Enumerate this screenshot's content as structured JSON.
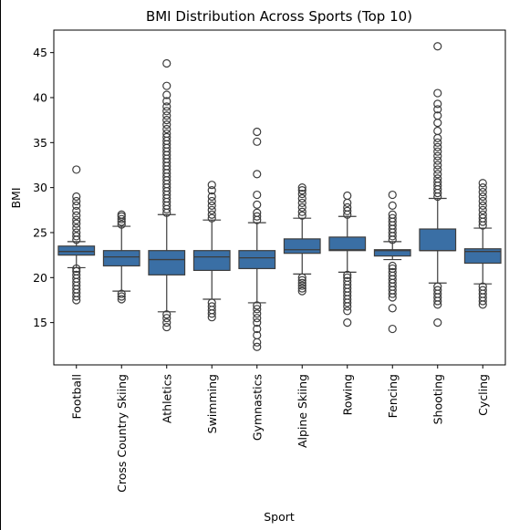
{
  "chart_data": {
    "type": "box",
    "title": "BMI Distribution Across Sports (Top 10)",
    "xlabel": "Sport",
    "ylabel": "BMI",
    "ylim": [
      10.3,
      47.5
    ],
    "yticks": [
      15,
      20,
      25,
      30,
      35,
      40,
      45
    ],
    "grid": false,
    "box_color": "#3a6fa5",
    "line_color": "#3d3d3d",
    "categories": [
      "Football",
      "Cross Country Skiing",
      "Athletics",
      "Swimming",
      "Gymnastics",
      "Alpine Skiing",
      "Rowing",
      "Fencing",
      "Shooting",
      "Cycling"
    ],
    "boxes": [
      {
        "sport": "Football",
        "whislo": 21.1,
        "q1": 22.5,
        "med": 22.9,
        "q3": 23.5,
        "whishi": 24.0,
        "fliers": [
          17.5,
          17.9,
          18.3,
          18.7,
          19.1,
          19.5,
          19.9,
          20.3,
          20.7,
          21.0,
          24.2,
          24.6,
          25.0,
          25.5,
          26.0,
          26.4,
          26.9,
          27.4,
          28.0,
          28.5,
          29.0,
          32.0
        ]
      },
      {
        "sport": "Cross Country Skiing",
        "whislo": 18.5,
        "q1": 21.3,
        "med": 22.3,
        "q3": 23.0,
        "whishi": 25.7,
        "fliers": [
          17.6,
          17.9,
          18.2,
          25.9,
          26.2,
          26.5,
          26.8,
          27.0
        ]
      },
      {
        "sport": "Athletics",
        "whislo": 16.2,
        "q1": 20.3,
        "med": 22.0,
        "q3": 23.0,
        "whishi": 27.0,
        "fliers": [
          14.5,
          15.0,
          15.5,
          15.9,
          27.2,
          27.6,
          28.0,
          28.4,
          28.8,
          29.2,
          29.6,
          30.0,
          30.4,
          30.8,
          31.2,
          31.6,
          32.0,
          32.4,
          32.8,
          33.2,
          33.6,
          34.0,
          34.4,
          34.8,
          35.2,
          35.6,
          36.0,
          36.5,
          37.0,
          37.5,
          38.0,
          38.5,
          39.0,
          39.6,
          40.3,
          41.3,
          43.8
        ]
      },
      {
        "sport": "Swimming",
        "whislo": 17.6,
        "q1": 20.8,
        "med": 22.3,
        "q3": 23.0,
        "whishi": 26.4,
        "fliers": [
          15.6,
          16.0,
          16.4,
          16.8,
          17.2,
          26.6,
          27.0,
          27.5,
          28.0,
          28.5,
          29.0,
          29.7,
          30.3
        ]
      },
      {
        "sport": "Gymnastics",
        "whislo": 17.2,
        "q1": 21.0,
        "med": 22.2,
        "q3": 23.0,
        "whishi": 26.1,
        "fliers": [
          12.3,
          12.8,
          13.6,
          14.3,
          15.0,
          15.5,
          16.0,
          16.5,
          16.9,
          26.4,
          26.8,
          27.2,
          28.1,
          29.2,
          31.5,
          35.1,
          36.2
        ]
      },
      {
        "sport": "Alpine Skiing",
        "whislo": 20.4,
        "q1": 22.7,
        "med": 23.1,
        "q3": 24.3,
        "whishi": 26.6,
        "fliers": [
          18.5,
          18.8,
          19.1,
          19.4,
          19.7,
          20.0,
          26.9,
          27.3,
          27.8,
          28.3,
          28.8,
          29.3,
          29.7,
          30.0
        ]
      },
      {
        "sport": "Rowing",
        "whislo": 20.6,
        "q1": 23.0,
        "med": 23.1,
        "q3": 24.5,
        "whishi": 26.8,
        "fliers": [
          15.0,
          16.3,
          16.8,
          17.2,
          17.6,
          18.0,
          18.4,
          18.8,
          19.2,
          19.6,
          20.0,
          20.3,
          27.0,
          27.4,
          27.8,
          28.3,
          29.1
        ]
      },
      {
        "sport": "Fencing",
        "whislo": 22.0,
        "q1": 22.4,
        "med": 23.0,
        "q3": 23.1,
        "whishi": 24.0,
        "fliers": [
          14.3,
          16.6,
          17.8,
          18.2,
          18.6,
          19.0,
          19.4,
          19.8,
          20.2,
          20.6,
          21.0,
          21.3,
          24.2,
          24.6,
          25.0,
          25.4,
          25.8,
          26.2,
          26.6,
          27.0,
          28.0,
          29.2
        ]
      },
      {
        "sport": "Shooting",
        "whislo": 19.4,
        "q1": 23.0,
        "med": 23.0,
        "q3": 25.4,
        "whishi": 28.8,
        "fliers": [
          15.0,
          17.0,
          17.4,
          17.8,
          18.2,
          18.6,
          19.0,
          29.0,
          29.4,
          29.8,
          30.2,
          30.6,
          31.0,
          31.5,
          32.0,
          32.5,
          33.0,
          33.5,
          34.0,
          34.5,
          35.0,
          35.5,
          36.3,
          37.2,
          38.0,
          38.7,
          39.3,
          40.5,
          45.7
        ]
      },
      {
        "sport": "Cycling",
        "whislo": 19.3,
        "q1": 21.6,
        "med": 22.9,
        "q3": 23.2,
        "whishi": 25.5,
        "fliers": [
          17.0,
          17.4,
          17.8,
          18.2,
          18.6,
          19.0,
          25.8,
          26.2,
          26.6,
          27.0,
          27.5,
          28.0,
          28.5,
          29.0,
          29.5,
          30.0,
          30.5
        ]
      }
    ]
  }
}
